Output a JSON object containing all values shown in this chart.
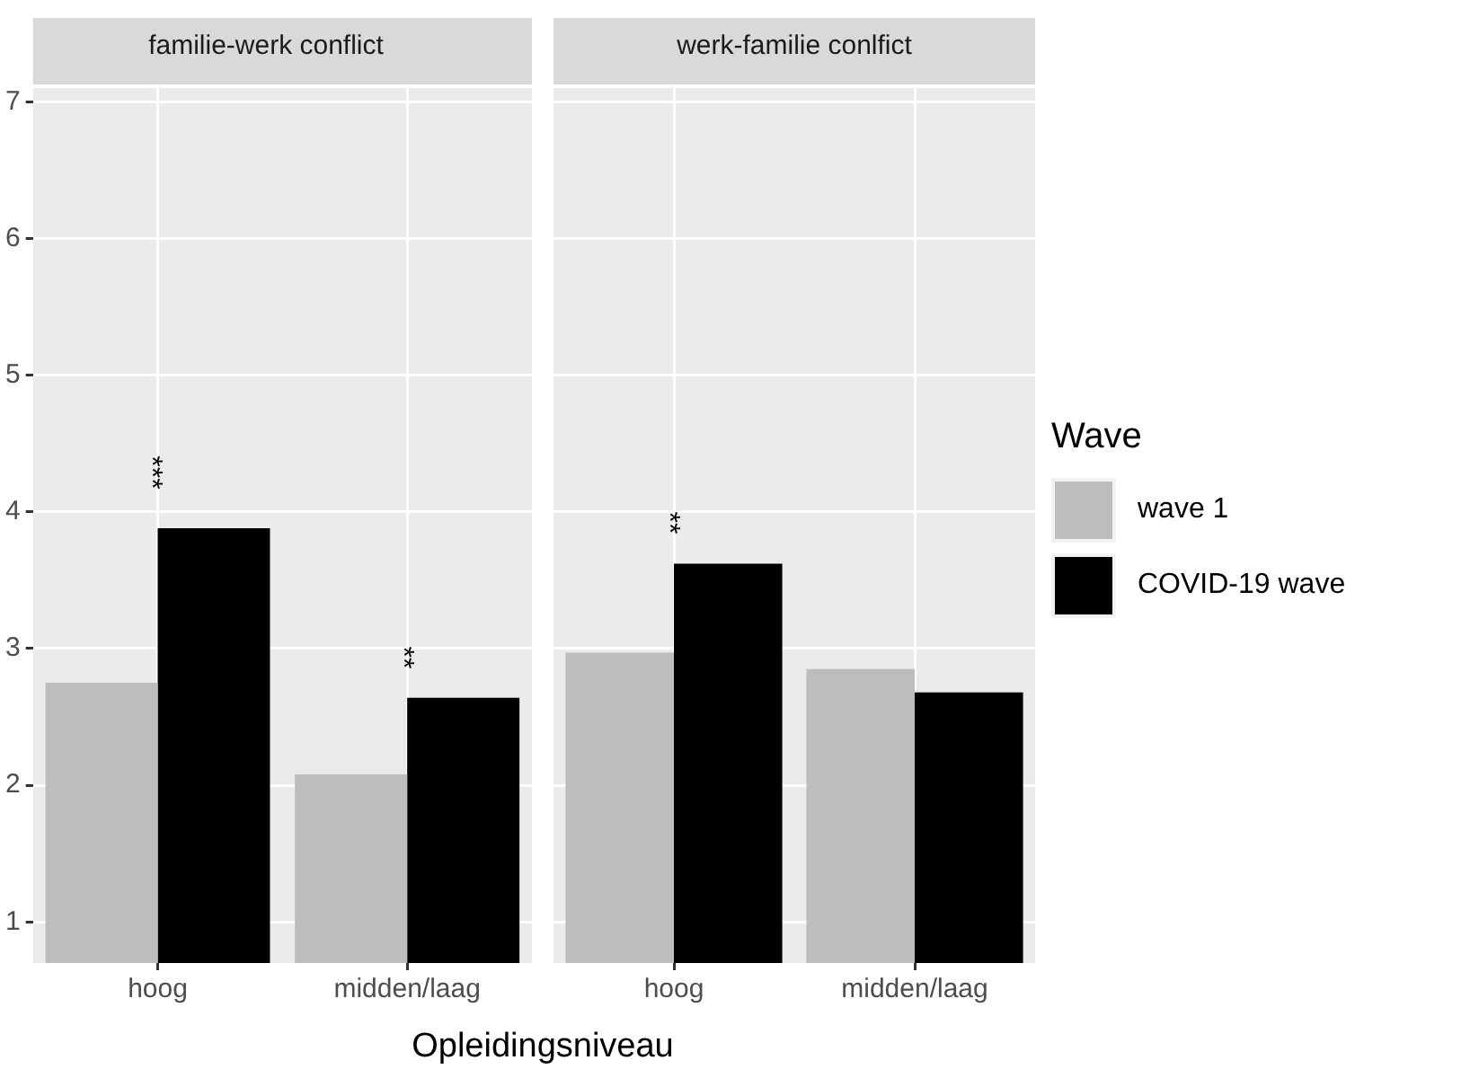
{
  "chart_data": [
    {
      "type": "bar",
      "title": "familie-werk conflict",
      "xlabel": "Opleidingsniveau",
      "categories": [
        "hoog",
        "midden/laag"
      ],
      "series": [
        {
          "color": "#bdbdbd",
          "values": [
            2.75,
            2.08
          ]
        },
        {
          "color": "#000000",
          "values": [
            3.88,
            2.64
          ]
        }
      ],
      "ylim": [
        0.7,
        7.1
      ],
      "yticks": [
        1,
        2,
        3,
        4,
        5,
        6,
        7
      ],
      "grid": true,
      "annotations": [
        "***",
        "**"
      ]
    },
    {
      "type": "bar",
      "title": "werk-familie conlfict",
      "categories": [
        "hoog",
        "midden/laag"
      ],
      "series": [
        {
          "name": "wave 1",
          "color": "#bdbdbd",
          "values": [
            2.97,
            2.85
          ]
        },
        {
          "name": "COVID-19 wave",
          "color": "#000000",
          "values": [
            3.62,
            2.68
          ]
        }
      ],
      "ylim": [
        0.7,
        7.1
      ],
      "yticks": [
        1,
        2,
        3,
        4,
        5,
        6,
        7
      ],
      "grid": true,
      "tick_labels": "x",
      "legend": "right",
      "legend_title": "Wave",
      "annotations": [
        "**"
      ]
    }
  ]
}
